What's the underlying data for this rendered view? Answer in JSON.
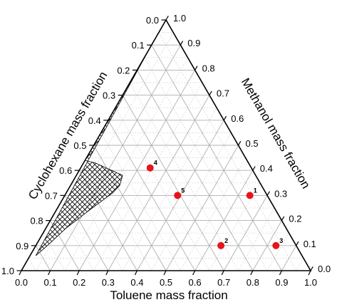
{
  "chart_data": {
    "type": "scatter",
    "subtype": "ternary",
    "title": "",
    "axes": {
      "bottom": "Toluene mass fraction",
      "left": "Cyclohexane mass fraction",
      "right": "Methanol mass fraction"
    },
    "ticks": [
      "0.0",
      "0.1",
      "0.2",
      "0.3",
      "0.4",
      "0.5",
      "0.6",
      "0.7",
      "0.8",
      "0.9",
      "1.0"
    ],
    "grid": true,
    "points": [
      {
        "label": "1",
        "toluene": 0.64,
        "methanol": 0.3,
        "cyclohexane": 0.06
      },
      {
        "label": "2",
        "toluene": 0.64,
        "methanol": 0.1,
        "cyclohexane": 0.26
      },
      {
        "label": "3",
        "toluene": 0.83,
        "methanol": 0.1,
        "cyclohexane": 0.07
      },
      {
        "label": "4",
        "toluene": 0.24,
        "methanol": 0.41,
        "cyclohexane": 0.35
      },
      {
        "label": "5",
        "toluene": 0.39,
        "methanol": 0.3,
        "cyclohexane": 0.31
      }
    ],
    "two_phase_region": {
      "pattern": "crosshatch",
      "boundary": [
        {
          "toluene": 0.0,
          "methanol": 0.9
        },
        {
          "toluene": 0.0,
          "methanol": 0.44
        },
        {
          "toluene": 0.04,
          "methanol": 0.43
        },
        {
          "toluene": 0.16,
          "methanol": 0.38
        },
        {
          "toluene": 0.17,
          "methanol": 0.34
        },
        {
          "toluene": 0.16,
          "methanol": 0.31
        },
        {
          "toluene": 0.12,
          "methanol": 0.25
        },
        {
          "toluene": 0.07,
          "methanol": 0.17
        },
        {
          "toluene": 0.04,
          "methanol": 0.1
        },
        {
          "toluene": 0.02,
          "methanol": 0.06
        }
      ]
    },
    "marker_color": "#e8141b",
    "grid_color": "#b0b0b0",
    "minor_grid_color": "#d0d0d0"
  }
}
